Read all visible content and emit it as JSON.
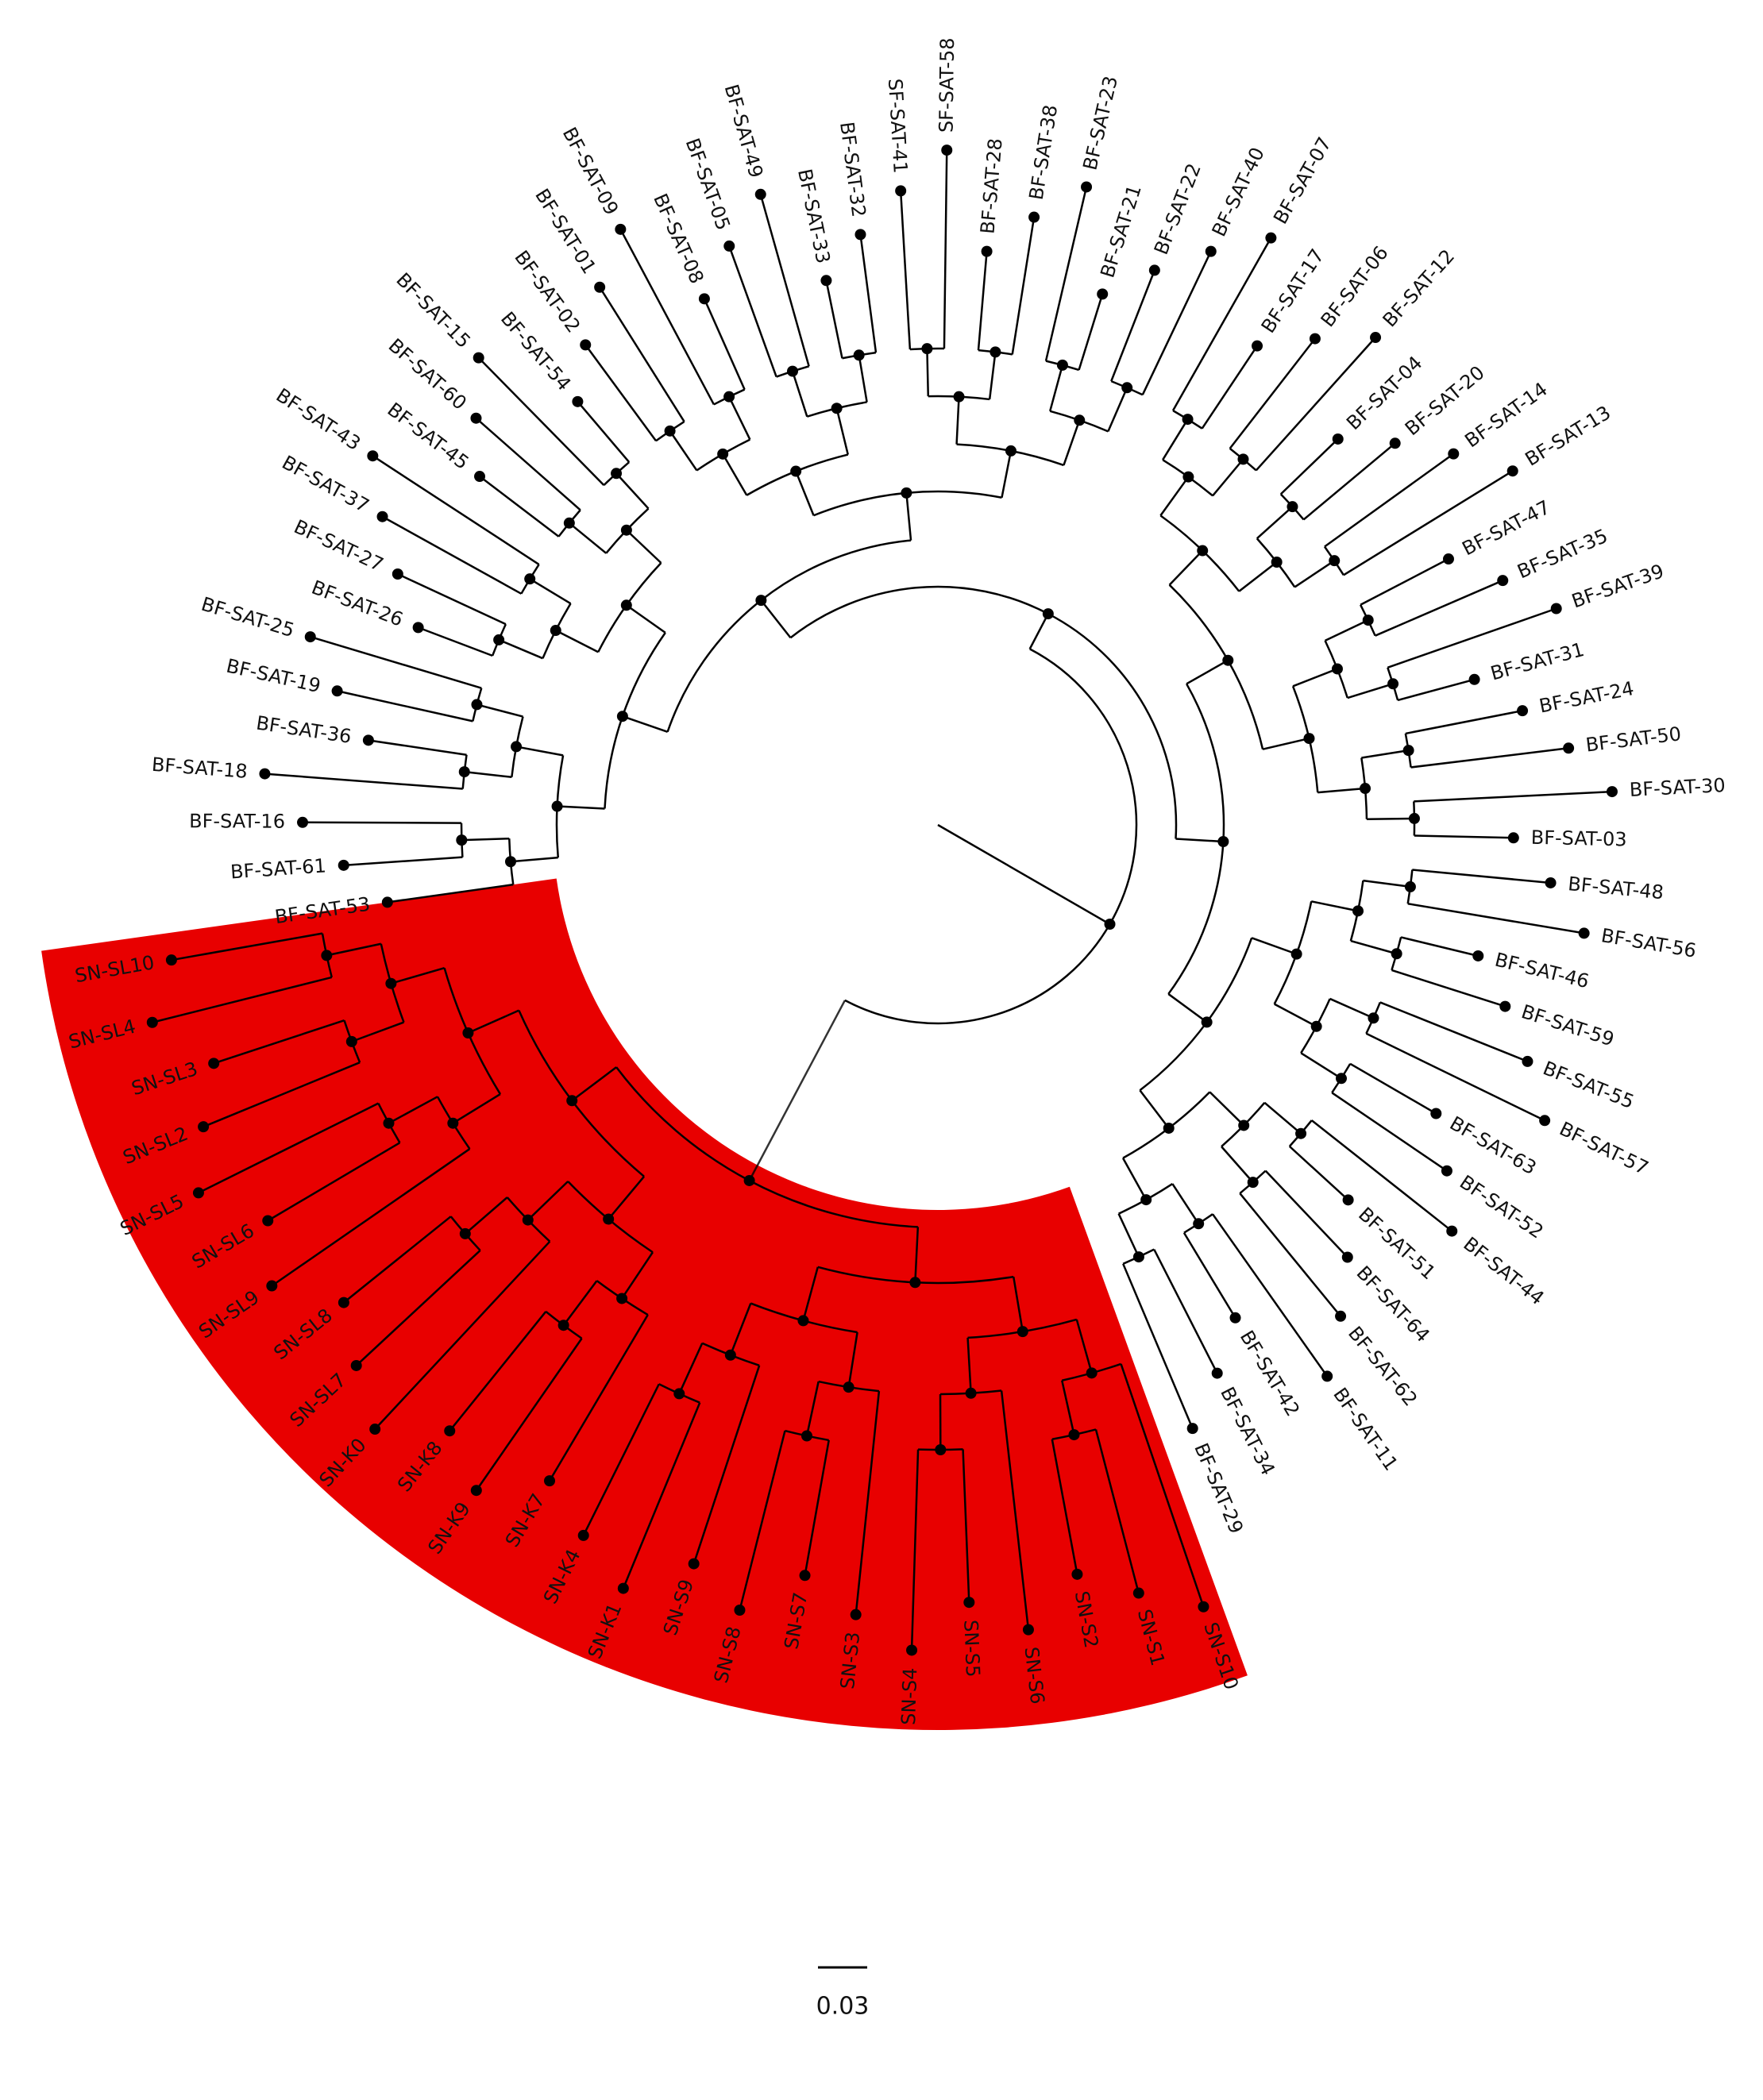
{
  "tree": {
    "leaves": [
      "BF-SAT-53",
      "BF-SAT-61",
      "BF-SAT-16",
      "BF-SAT-18",
      "BF-SAT-36",
      "BF-SAT-19",
      "BF-SAT-25",
      "BF-SAT-26",
      "BF-SAT-27",
      "BF-SAT-37",
      "BF-SAT-43",
      "BF-SAT-45",
      "BF-SAT-60",
      "BF-SAT-15",
      "BF-SAT-54",
      "BF-SAT-02",
      "BF-SAT-01",
      "BF-SAT-09",
      "BF-SAT-08",
      "BF-SAT-05",
      "BF-SAT-49",
      "BF-SAT-33",
      "BF-SAT-32",
      "SF-SAT-41",
      "SF-SAT-58",
      "BF-SAT-28",
      "BF-SAT-38",
      "BF-SAT-23",
      "BF-SAT-21",
      "BF-SAT-22",
      "BF-SAT-40",
      "BF-SAT-07",
      "BF-SAT-17",
      "BF-SAT-06",
      "BF-SAT-12",
      "BF-SAT-04",
      "BF-SAT-20",
      "BF-SAT-14",
      "BF-SAT-13",
      "BF-SAT-47",
      "BF-SAT-35",
      "BF-SAT-39",
      "BF-SAT-31",
      "BF-SAT-24",
      "BF-SAT-50",
      "BF-SAT-30",
      "BF-SAT-03",
      "BF-SAT-48",
      "BF-SAT-56",
      "BF-SAT-46",
      "BF-SAT-59",
      "BF-SAT-55",
      "BF-SAT-57",
      "BF-SAT-63",
      "BF-SAT-52",
      "BF-SAT-44",
      "BF-SAT-51",
      "BF-SAT-64",
      "BF-SAT-62",
      "BF-SAT-11",
      "BF-SAT-42",
      "BF-SAT-34",
      "BF-SAT-29",
      "SN-S10",
      "SN-S1",
      "SN-S2",
      "SN-S6",
      "SN-S5",
      "SN-S4",
      "SN-S3",
      "SN-S7",
      "SN-S8",
      "SN-S9",
      "SN-K1",
      "SN-K4",
      "SN-K7",
      "SN-K9",
      "SN-K8",
      "SN-K0",
      "SN-SL7",
      "SN-SL8",
      "SN-SL9",
      "SN-SL6",
      "SN-SL5",
      "SN-SL2",
      "SN-SL3",
      "SN-SL4",
      "SN-SL10"
    ]
  },
  "scale_bar": {
    "label": "0.03"
  }
}
